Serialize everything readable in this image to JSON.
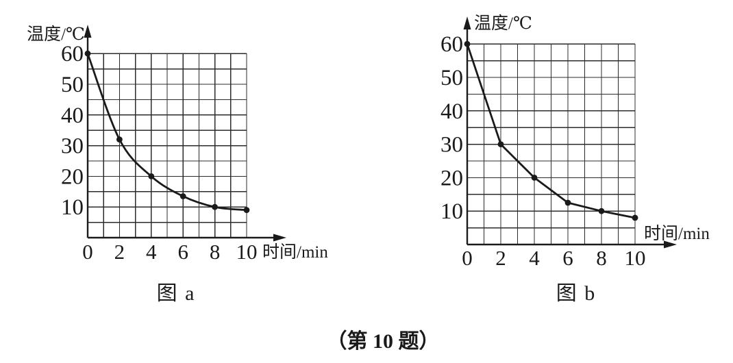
{
  "figure": {
    "footer": "（第 10 题）"
  },
  "colors": {
    "ink": "#1a1a1a",
    "grid": "#2b2b2b",
    "background": "#ffffff"
  },
  "chart_data": [
    {
      "id": "a",
      "type": "line",
      "caption": "图 a",
      "ylabel": "温度/℃",
      "xlabel": "时间/min",
      "x": [
        0,
        2,
        4,
        6,
        8,
        10
      ],
      "values": [
        60,
        32,
        20,
        13.5,
        10,
        9
      ],
      "x_ticks": [
        0,
        2,
        4,
        6,
        8,
        10
      ],
      "y_ticks": [
        10,
        20,
        30,
        40,
        50,
        60
      ],
      "xlim": [
        0,
        10
      ],
      "ylim": [
        0,
        60
      ],
      "grid": true,
      "grid_step_x": 1,
      "grid_step_y": 5,
      "smooth": true,
      "marker": "dot",
      "legend": "none"
    },
    {
      "id": "b",
      "type": "line",
      "caption": "图 b",
      "ylabel": "温度/℃",
      "xlabel": "时间/min",
      "x": [
        0,
        2,
        4,
        6,
        8,
        10
      ],
      "values": [
        60,
        30,
        20,
        12.5,
        10,
        8
      ],
      "x_ticks": [
        0,
        2,
        4,
        6,
        8,
        10
      ],
      "y_ticks": [
        10,
        20,
        30,
        40,
        50,
        60
      ],
      "xlim": [
        0,
        10
      ],
      "ylim": [
        0,
        60
      ],
      "grid": true,
      "grid_step_x": 1,
      "grid_step_y": 5,
      "smooth": false,
      "marker": "dot",
      "legend": "none"
    }
  ]
}
